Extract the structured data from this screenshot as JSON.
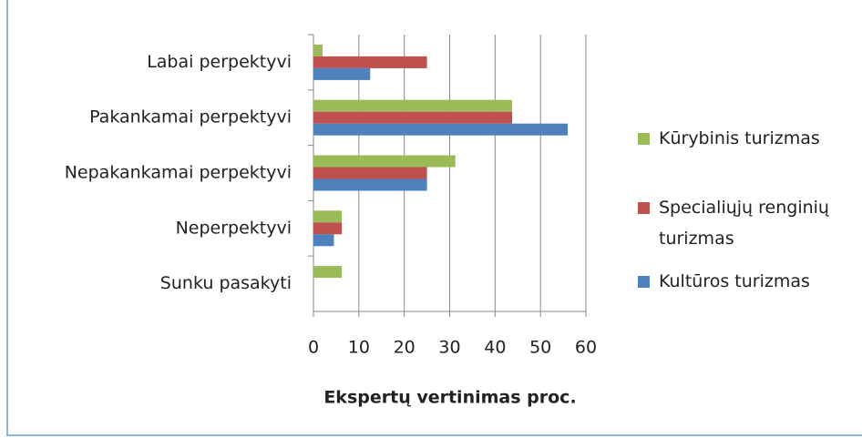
{
  "chart_data": {
    "type": "hbar",
    "xlabel": "Ekspertų vertinimas proc.",
    "categories": [
      "Labai perpektyvi",
      "Pakankamai perpektyvi",
      "Nepakankamai perpektyvi",
      "Neperpektyvi",
      "Sunku pasakyti"
    ],
    "series": [
      {
        "name": "Kūrybinis turizmas",
        "color": "#9bbb59",
        "values": [
          2,
          43.75,
          31.25,
          6.25,
          6.25
        ]
      },
      {
        "name": "Specialiųjų renginių turizmas",
        "color": "#c0504d",
        "values": [
          25,
          43.75,
          25,
          6.25,
          0
        ]
      },
      {
        "name": "Kultūros turizmas",
        "color": "#4f81bd",
        "values": [
          12.5,
          56,
          25,
          4.5,
          0
        ]
      }
    ],
    "xlim": [
      0,
      60
    ],
    "xticks": [
      0,
      10,
      20,
      30,
      40,
      50,
      60
    ],
    "grid": true,
    "legend": "right"
  }
}
